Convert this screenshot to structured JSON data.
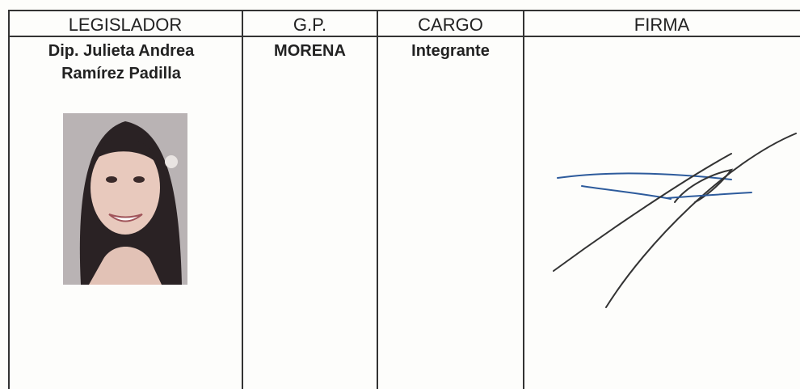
{
  "table": {
    "headers": [
      "LEGISLADOR",
      "G.P.",
      "CARGO",
      "FIRMA"
    ],
    "rows": [
      [
        "Dip. Julieta Andrea Ramírez Padilla",
        "MORENA",
        "Integrante"
      ]
    ]
  }
}
